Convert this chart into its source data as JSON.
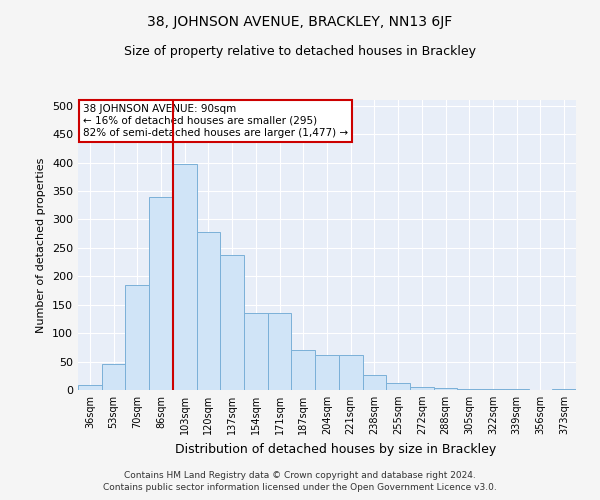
{
  "title": "38, JOHNSON AVENUE, BRACKLEY, NN13 6JF",
  "subtitle": "Size of property relative to detached houses in Brackley",
  "xlabel": "Distribution of detached houses by size in Brackley",
  "ylabel": "Number of detached properties",
  "categories": [
    "36sqm",
    "53sqm",
    "70sqm",
    "86sqm",
    "103sqm",
    "120sqm",
    "137sqm",
    "154sqm",
    "171sqm",
    "187sqm",
    "204sqm",
    "221sqm",
    "238sqm",
    "255sqm",
    "272sqm",
    "288sqm",
    "305sqm",
    "322sqm",
    "339sqm",
    "356sqm",
    "373sqm"
  ],
  "values": [
    8,
    46,
    184,
    340,
    398,
    277,
    238,
    135,
    135,
    70,
    62,
    62,
    27,
    12,
    5,
    3,
    2,
    1,
    1,
    0,
    1
  ],
  "bar_color": "#d0e4f7",
  "bar_edge_color": "#7ab0d8",
  "vline_x": 3.5,
  "annotation_title": "38 JOHNSON AVENUE: 90sqm",
  "annotation_line1": "← 16% of detached houses are smaller (295)",
  "annotation_line2": "82% of semi-detached houses are larger (1,477) →",
  "vline_color": "#cc0000",
  "annotation_box_edge": "#cc0000",
  "footer_line1": "Contains HM Land Registry data © Crown copyright and database right 2024.",
  "footer_line2": "Contains public sector information licensed under the Open Government Licence v3.0.",
  "ylim": [
    0,
    510
  ],
  "yticks": [
    0,
    50,
    100,
    150,
    200,
    250,
    300,
    350,
    400,
    450,
    500
  ],
  "plot_bg_color": "#e8eef8",
  "fig_bg_color": "#f5f5f5",
  "grid_color": "#ffffff",
  "title_fontsize": 10,
  "subtitle_fontsize": 9
}
